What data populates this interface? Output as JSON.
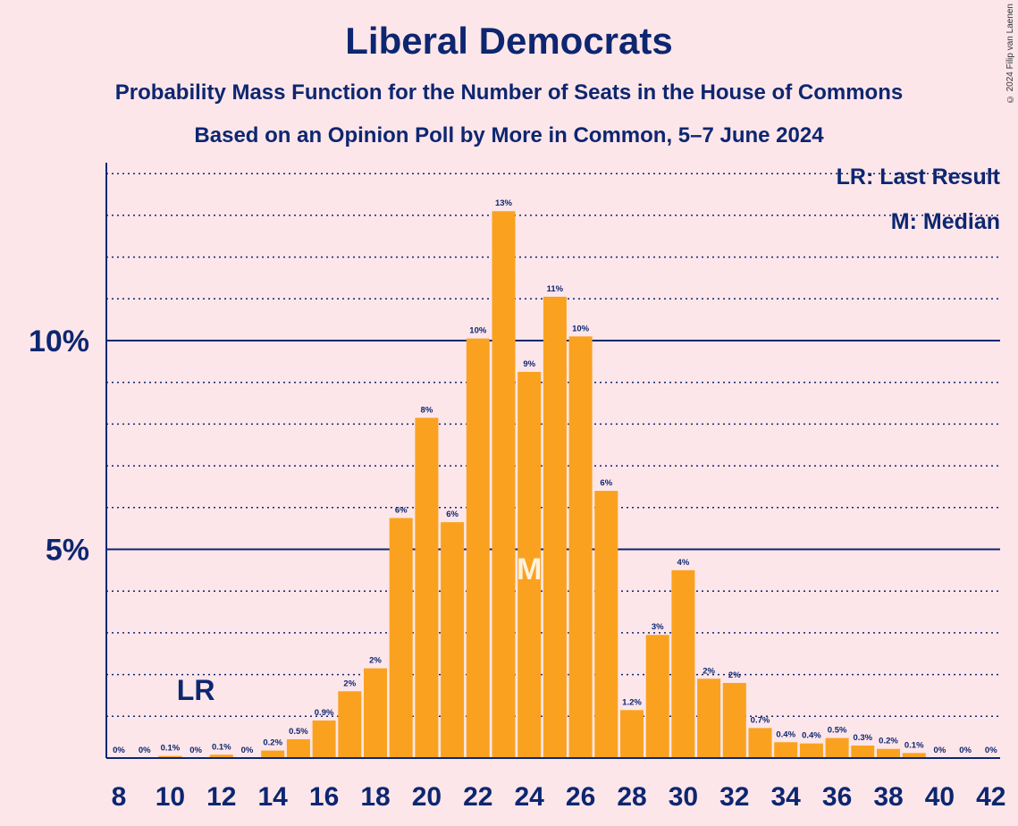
{
  "chart_data": {
    "type": "bar",
    "title": "Liberal Democrats",
    "subtitles": [
      "Probability Mass Function for the Number of Seats in the House of Commons",
      "Based on an Opinion Poll by More in Common, 5–7 June 2024"
    ],
    "copyright": "© 2024 Filip van Laenen",
    "x": [
      8,
      9,
      10,
      11,
      12,
      13,
      14,
      15,
      16,
      17,
      18,
      19,
      20,
      21,
      22,
      23,
      24,
      25,
      26,
      27,
      28,
      29,
      30,
      31,
      32,
      33,
      34,
      35,
      36,
      37,
      38,
      39,
      40,
      41,
      42
    ],
    "values": [
      0,
      0,
      0.05,
      0,
      0.08,
      0,
      0.18,
      0.45,
      0.9,
      1.6,
      2.15,
      5.75,
      8.15,
      5.65,
      10.05,
      13.1,
      9.25,
      11.05,
      10.1,
      6.4,
      1.15,
      2.95,
      4.5,
      1.9,
      1.8,
      0.72,
      0.38,
      0.35,
      0.48,
      0.3,
      0.22,
      0.12,
      0,
      0,
      0
    ],
    "data_labels": [
      "0%",
      "0%",
      "0.1%",
      "0%",
      "0.1%",
      "0%",
      "0.2%",
      "0.5%",
      "0.9%",
      "2%",
      "2%",
      "6%",
      "8%",
      "6%",
      "10%",
      "13%",
      "9%",
      "11%",
      "10%",
      "6%",
      "1.2%",
      "3%",
      "4%",
      "2%",
      "2%",
      "0.7%",
      "0.4%",
      "0.4%",
      "0.5%",
      "0.3%",
      "0.2%",
      "0.1%",
      "0%",
      "0%",
      "0%"
    ],
    "x_tick_labels": [
      "8",
      "10",
      "12",
      "14",
      "16",
      "18",
      "20",
      "22",
      "24",
      "26",
      "28",
      "30",
      "32",
      "34",
      "36",
      "38",
      "40",
      "42"
    ],
    "y_tick_labels": [
      {
        "value": 5,
        "label": "5%"
      },
      {
        "value": 10,
        "label": "10%"
      }
    ],
    "ylim": [
      0,
      14.3
    ],
    "grid": "dotted every 1%, solid at 5% and 10%",
    "bar_color": "#faa21f",
    "axis_color": "#0d2670",
    "last_result": {
      "x": 11,
      "label": "LR"
    },
    "median": {
      "x": 24,
      "label": "M"
    },
    "legend": {
      "placement": "top-right",
      "entries": [
        "LR: Last Result",
        "M: Median"
      ]
    }
  }
}
